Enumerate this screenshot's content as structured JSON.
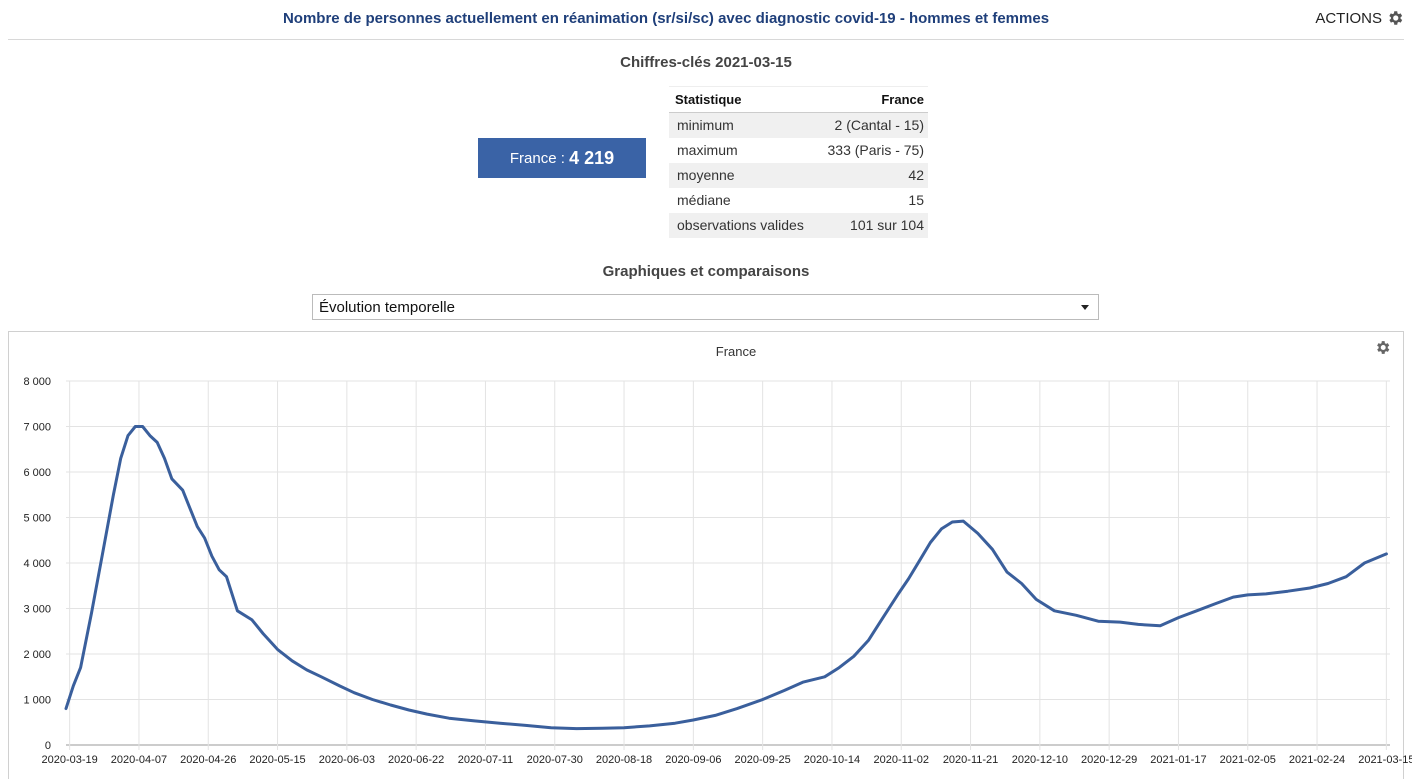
{
  "header": {
    "title": "Nombre de personnes actuellement en réanimation (sr/si/sc) avec diagnostic covid-19 - hommes et femmes",
    "actions_label": "ACTIONS",
    "actions_icon": "gear-icon"
  },
  "key_figures": {
    "title": "Chiffres-clés 2021-03-15",
    "france_label": "France : ",
    "france_value": "4 219",
    "table": {
      "headers": [
        "Statistique",
        "France"
      ],
      "rows": [
        [
          "minimum",
          "2 (Cantal - 15)"
        ],
        [
          "maximum",
          "333 (Paris - 75)"
        ],
        [
          "moyenne",
          "42"
        ],
        [
          "médiane",
          "15"
        ],
        [
          "observations valides",
          "101 sur 104"
        ]
      ]
    }
  },
  "comparisons": {
    "title": "Graphiques et comparaisons",
    "selected_option": "Évolution temporelle"
  },
  "colors": {
    "accent": "#3a63a6",
    "line": "#3a5f9c",
    "title": "#1f3f7a"
  },
  "chart_data": {
    "type": "line",
    "title": "France",
    "xlabel": "",
    "ylabel": "",
    "grid": true,
    "legend": "none",
    "ylim": [
      0,
      8000
    ],
    "yticks": [
      0,
      1000,
      2000,
      3000,
      4000,
      5000,
      6000,
      7000,
      8000
    ],
    "ytick_labels": [
      "0",
      "1 000",
      "2 000",
      "3 000",
      "4 000",
      "5 000",
      "6 000",
      "7 000",
      "8 000"
    ],
    "xlim": [
      "2020-03-18",
      "2021-03-16"
    ],
    "xtick_labels": [
      "2020-03-19",
      "2020-04-07",
      "2020-04-26",
      "2020-05-15",
      "2020-06-03",
      "2020-06-22",
      "2020-07-11",
      "2020-07-30",
      "2020-08-18",
      "2020-09-06",
      "2020-09-25",
      "2020-10-14",
      "2020-11-02",
      "2020-11-21",
      "2020-12-10",
      "2020-12-29",
      "2021-01-17",
      "2021-02-05",
      "2021-02-24",
      "2021-03-15"
    ],
    "series": [
      {
        "x": [
          "2020-03-18",
          "2020-03-20",
          "2020-03-22",
          "2020-03-25",
          "2020-03-28",
          "2020-03-31",
          "2020-04-02",
          "2020-04-04",
          "2020-04-06",
          "2020-04-08",
          "2020-04-10",
          "2020-04-12",
          "2020-04-14",
          "2020-04-16",
          "2020-04-19",
          "2020-04-21",
          "2020-04-23",
          "2020-04-25",
          "2020-04-27",
          "2020-04-29",
          "2020-05-01",
          "2020-05-04",
          "2020-05-08",
          "2020-05-11",
          "2020-05-15",
          "2020-05-19",
          "2020-05-23",
          "2020-05-27",
          "2020-06-01",
          "2020-06-05",
          "2020-06-10",
          "2020-06-15",
          "2020-06-20",
          "2020-06-25",
          "2020-07-01",
          "2020-07-08",
          "2020-07-15",
          "2020-07-22",
          "2020-07-29",
          "2020-08-05",
          "2020-08-12",
          "2020-08-18",
          "2020-08-25",
          "2020-09-01",
          "2020-09-06",
          "2020-09-12",
          "2020-09-18",
          "2020-09-25",
          "2020-10-01",
          "2020-10-06",
          "2020-10-12",
          "2020-10-16",
          "2020-10-20",
          "2020-10-24",
          "2020-10-28",
          "2020-11-01",
          "2020-11-04",
          "2020-11-07",
          "2020-11-10",
          "2020-11-13",
          "2020-11-16",
          "2020-11-19",
          "2020-11-23",
          "2020-11-27",
          "2020-12-01",
          "2020-12-05",
          "2020-12-09",
          "2020-12-14",
          "2020-12-20",
          "2020-12-26",
          "2021-01-01",
          "2021-01-06",
          "2021-01-12",
          "2021-01-17",
          "2021-01-22",
          "2021-01-27",
          "2021-02-01",
          "2021-02-05",
          "2021-02-10",
          "2021-02-16",
          "2021-02-22",
          "2021-02-27",
          "2021-03-04",
          "2021-03-09",
          "2021-03-15"
        ],
        "y": [
          800,
          1300,
          1700,
          2900,
          4200,
          5500,
          6300,
          6800,
          7000,
          7000,
          6800,
          6650,
          6300,
          5850,
          5600,
          5200,
          4800,
          4550,
          4150,
          3850,
          3700,
          2950,
          2750,
          2450,
          2100,
          1850,
          1650,
          1500,
          1300,
          1150,
          1000,
          880,
          770,
          680,
          590,
          530,
          480,
          430,
          380,
          360,
          370,
          380,
          420,
          480,
          550,
          650,
          800,
          1000,
          1200,
          1380,
          1500,
          1700,
          1950,
          2300,
          2800,
          3300,
          3650,
          4050,
          4450,
          4750,
          4900,
          4920,
          4650,
          4300,
          3800,
          3550,
          3200,
          2950,
          2850,
          2720,
          2700,
          2650,
          2620,
          2800,
          2950,
          3100,
          3250,
          3300,
          3320,
          3380,
          3450,
          3550,
          3700,
          4000,
          4200
        ]
      }
    ]
  }
}
